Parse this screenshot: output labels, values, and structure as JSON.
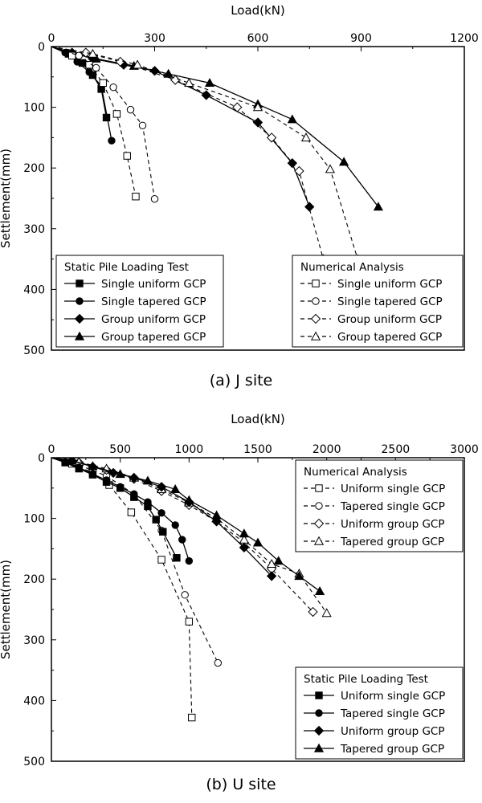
{
  "figure": {
    "caption_a": "(a) J site",
    "caption_b": "(b) U site"
  },
  "chart_data": [
    {
      "type": "line",
      "xlabel": "Load(kN)",
      "ylabel": "Settlement(mm)",
      "xlim": [
        0,
        1200
      ],
      "ylim": [
        0,
        500
      ],
      "y_inverted": true,
      "x_axis_position": "top",
      "xticks": [
        0,
        300,
        600,
        900,
        1200
      ],
      "yticks": [
        0,
        100,
        200,
        300,
        400,
        500
      ],
      "legends": [
        {
          "title": "Static Pile Loading Test",
          "placement": "bottom-left",
          "entries": [
            "Single uniform GCP",
            "Single tapered GCP",
            "Group uniform GCP",
            "Group tapered GCP"
          ]
        },
        {
          "title": "Numerical Analysis",
          "placement": "bottom-right",
          "entries": [
            "Single uniform  GCP",
            "Single tapered GCP",
            "Group uniform GCP",
            "Group tapered GCP"
          ]
        }
      ],
      "series": [
        {
          "name": "Single uniform GCP",
          "group": "test",
          "marker": "square",
          "filled": true,
          "dashed": false,
          "points": [
            [
              0,
              0
            ],
            [
              50,
              12
            ],
            [
              90,
              27
            ],
            [
              120,
              47
            ],
            [
              145,
              70
            ],
            [
              160,
              117
            ]
          ]
        },
        {
          "name": "Single tapered GCP",
          "group": "test",
          "marker": "circle",
          "filled": true,
          "dashed": false,
          "points": [
            [
              0,
              0
            ],
            [
              40,
              10
            ],
            [
              75,
              25
            ],
            [
              110,
              42
            ],
            [
              145,
              65
            ],
            [
              175,
              155
            ]
          ]
        },
        {
          "name": "Group uniform GCP",
          "group": "test",
          "marker": "diamond",
          "filled": true,
          "dashed": false,
          "points": [
            [
              0,
              0
            ],
            [
              60,
              10
            ],
            [
              120,
              20
            ],
            [
              210,
              30
            ],
            [
              300,
              40
            ],
            [
              450,
              80
            ],
            [
              600,
              125
            ],
            [
              700,
              192
            ],
            [
              750,
              264
            ]
          ]
        },
        {
          "name": "Group tapered GCP",
          "group": "test",
          "marker": "triangle",
          "filled": true,
          "dashed": false,
          "points": [
            [
              0,
              0
            ],
            [
              60,
              10
            ],
            [
              130,
              20
            ],
            [
              240,
              32
            ],
            [
              340,
              45
            ],
            [
              460,
              60
            ],
            [
              600,
              95
            ],
            [
              700,
              120
            ],
            [
              850,
              190
            ],
            [
              950,
              264
            ]
          ]
        },
        {
          "name": "Single uniform  GCP",
          "group": "numerical",
          "marker": "square",
          "filled": false,
          "dashed": true,
          "points": [
            [
              0,
              0
            ],
            [
              60,
              15
            ],
            [
              110,
              30
            ],
            [
              150,
              60
            ],
            [
              190,
              111
            ],
            [
              220,
              180
            ],
            [
              245,
              247
            ]
          ]
        },
        {
          "name": "Single tapered GCP",
          "group": "numerical",
          "marker": "circle",
          "filled": false,
          "dashed": true,
          "points": [
            [
              0,
              0
            ],
            [
              80,
              15
            ],
            [
              130,
              35
            ],
            [
              180,
              67
            ],
            [
              230,
              104
            ],
            [
              265,
              130
            ],
            [
              300,
              251
            ]
          ]
        },
        {
          "name": "Group uniform GCP",
          "group": "numerical",
          "marker": "diamond",
          "filled": false,
          "dashed": true,
          "points": [
            [
              0,
              0
            ],
            [
              100,
              10
            ],
            [
              200,
              25
            ],
            [
              360,
              55
            ],
            [
              540,
              100
            ],
            [
              640,
              150
            ],
            [
              720,
              205
            ],
            [
              790,
              350
            ]
          ]
        },
        {
          "name": "Group tapered GCP",
          "group": "numerical",
          "marker": "triangle",
          "filled": false,
          "dashed": true,
          "points": [
            [
              0,
              0
            ],
            [
              120,
              12
            ],
            [
              250,
              30
            ],
            [
              400,
              60
            ],
            [
              600,
              100
            ],
            [
              740,
              150
            ],
            [
              810,
              202
            ],
            [
              890,
              350
            ]
          ]
        }
      ]
    },
    {
      "type": "line",
      "xlabel": "Load(kN)",
      "ylabel": "Settlement(mm)",
      "xlim": [
        0,
        3000
      ],
      "ylim": [
        0,
        500
      ],
      "y_inverted": true,
      "x_axis_position": "top",
      "xticks": [
        0,
        500,
        1000,
        1500,
        2000,
        2500,
        3000
      ],
      "yticks": [
        0,
        100,
        200,
        300,
        400,
        500
      ],
      "legends": [
        {
          "title": "Numerical Analysis",
          "placement": "top-right",
          "entries": [
            "Uniform  single GCP",
            "Tapered single GCP",
            "Uniform  group GCP",
            "Tapered group GCP"
          ]
        },
        {
          "title": "Static Pile Loading Test",
          "placement": "bottom-right",
          "entries": [
            "Uniform  single GCP",
            "Tapered single GCP",
            "Uniform  group GCP",
            "Tapered group GCP"
          ]
        }
      ],
      "series": [
        {
          "name": "Uniform  single GCP",
          "group": "numerical",
          "marker": "square",
          "filled": false,
          "dashed": true,
          "points": [
            [
              0,
              0
            ],
            [
              150,
              10
            ],
            [
              300,
              25
            ],
            [
              420,
              45
            ],
            [
              580,
              90
            ],
            [
              800,
              168
            ],
            [
              1000,
              270
            ],
            [
              1020,
              428
            ]
          ]
        },
        {
          "name": "Tapered single GCP",
          "group": "numerical",
          "marker": "circle",
          "filled": false,
          "dashed": true,
          "points": [
            [
              0,
              0
            ],
            [
              200,
              12
            ],
            [
              400,
              30
            ],
            [
              600,
              60
            ],
            [
              800,
              120
            ],
            [
              970,
              226
            ],
            [
              1210,
              338
            ]
          ]
        },
        {
          "name": "Uniform  group GCP",
          "group": "numerical",
          "marker": "diamond",
          "filled": false,
          "dashed": true,
          "points": [
            [
              0,
              0
            ],
            [
              200,
              8
            ],
            [
              400,
              20
            ],
            [
              600,
              35
            ],
            [
              800,
              55
            ],
            [
              1000,
              78
            ],
            [
              1200,
              105
            ],
            [
              1400,
              140
            ],
            [
              1600,
              183
            ],
            [
              1900,
              254
            ]
          ]
        },
        {
          "name": "Tapered group GCP",
          "group": "numerical",
          "marker": "triangle",
          "filled": false,
          "dashed": true,
          "points": [
            [
              0,
              0
            ],
            [
              200,
              7
            ],
            [
              400,
              18
            ],
            [
              600,
              33
            ],
            [
              800,
              52
            ],
            [
              1000,
              74
            ],
            [
              1200,
              100
            ],
            [
              1400,
              135
            ],
            [
              1600,
              175
            ],
            [
              1800,
              191
            ],
            [
              2000,
              256
            ]
          ]
        },
        {
          "name": "Uniform  single GCP",
          "group": "test",
          "marker": "square",
          "filled": true,
          "dashed": false,
          "points": [
            [
              0,
              0
            ],
            [
              100,
              8
            ],
            [
              200,
              18
            ],
            [
              300,
              28
            ],
            [
              400,
              40
            ],
            [
              500,
              50
            ],
            [
              600,
              65
            ],
            [
              700,
              80
            ],
            [
              760,
              102
            ],
            [
              810,
              122
            ],
            [
              910,
              165
            ]
          ]
        },
        {
          "name": "Tapered single GCP",
          "group": "test",
          "marker": "circle",
          "filled": true,
          "dashed": false,
          "points": [
            [
              0,
              0
            ],
            [
              100,
              7
            ],
            [
              200,
              16
            ],
            [
              300,
              27
            ],
            [
              400,
              37
            ],
            [
              500,
              48
            ],
            [
              600,
              60
            ],
            [
              700,
              73
            ],
            [
              800,
              91
            ],
            [
              900,
              111
            ],
            [
              950,
              135
            ],
            [
              1000,
              170
            ]
          ]
        },
        {
          "name": "Uniform  group GCP",
          "group": "test",
          "marker": "diamond",
          "filled": true,
          "dashed": false,
          "points": [
            [
              0,
              0
            ],
            [
              150,
              5
            ],
            [
              300,
              15
            ],
            [
              450,
              25
            ],
            [
              600,
              33
            ],
            [
              800,
              48
            ],
            [
              1000,
              73
            ],
            [
              1200,
              105
            ],
            [
              1400,
              148
            ],
            [
              1600,
              195
            ]
          ]
        },
        {
          "name": "Tapered group GCP",
          "group": "test",
          "marker": "triangle",
          "filled": true,
          "dashed": false,
          "points": [
            [
              0,
              0
            ],
            [
              150,
              5
            ],
            [
              300,
              14
            ],
            [
              500,
              27
            ],
            [
              700,
              38
            ],
            [
              900,
              52
            ],
            [
              1000,
              70
            ],
            [
              1200,
              95
            ],
            [
              1400,
              125
            ],
            [
              1500,
              140
            ],
            [
              1650,
              170
            ],
            [
              1800,
              195
            ],
            [
              1950,
              220
            ]
          ]
        }
      ]
    }
  ]
}
